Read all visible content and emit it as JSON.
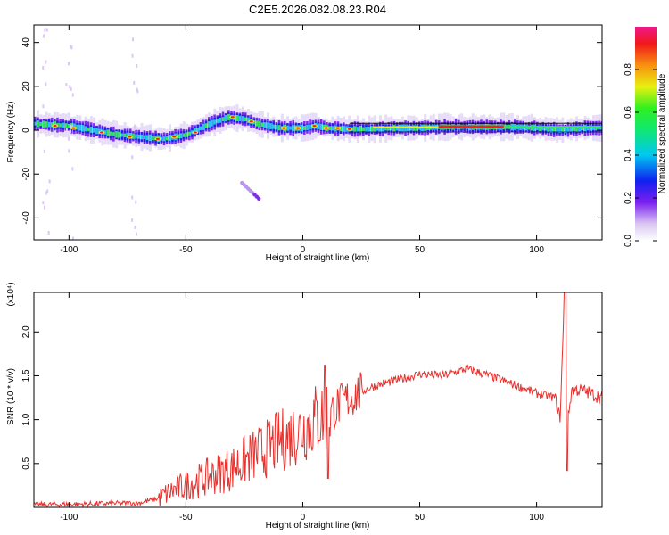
{
  "figure": {
    "title": "C2E5.2026.082.08.23.R04"
  },
  "colors": {
    "line": "#e8302d",
    "axis": "#000000",
    "background": "#ffffff"
  },
  "chart_data": [
    {
      "type": "heatmap",
      "xlabel": "Height of straight line (km)",
      "ylabel": "Frequency (Hz)",
      "xlim": [
        -115,
        128
      ],
      "ylim": [
        -50,
        48
      ],
      "xticks": [
        -100,
        -50,
        0,
        50,
        100
      ],
      "yticks": [
        -40,
        -20,
        0,
        20,
        40
      ],
      "xtick_labels": [
        "-100",
        "-50",
        "0",
        "50",
        "100"
      ],
      "ytick_labels": [
        "-40",
        "-20",
        "0",
        "20",
        "40"
      ],
      "ridge": {
        "x": [
          -115,
          -100,
          -90,
          -80,
          -70,
          -60,
          -50,
          -40,
          -32,
          -25,
          -20,
          -10,
          0,
          5,
          10,
          20,
          30,
          40,
          50,
          60,
          70,
          80,
          90,
          100,
          110,
          120,
          128
        ],
        "y": [
          3,
          2,
          0,
          -2,
          -3,
          -4,
          -2,
          3,
          6,
          5,
          3,
          1,
          1,
          2,
          1,
          0.5,
          0.5,
          1,
          1,
          1.5,
          1.5,
          1.5,
          1.5,
          1,
          0,
          1,
          1
        ]
      },
      "colorbar": {
        "label": "Normalized spectral amplitude",
        "ticks": [
          0.0,
          0.2,
          0.4,
          0.6,
          0.8
        ],
        "tick_labels": [
          "0.0",
          "0.2",
          "0.4",
          "0.6",
          "0.8"
        ],
        "range": [
          0,
          1
        ]
      }
    },
    {
      "type": "line",
      "xlabel": "Height of straight line (km)",
      "ylabel": "SNR (10 * v/v)",
      "scale_label": "(x10⁴)",
      "xlim": [
        -115,
        128
      ],
      "ylim": [
        0,
        2.45
      ],
      "xticks": [
        -100,
        -50,
        0,
        50,
        100
      ],
      "yticks": [
        0.5,
        1.0,
        1.5,
        2.0
      ],
      "xtick_labels": [
        "-100",
        "-50",
        "0",
        "50",
        "100"
      ],
      "ytick_labels": [
        "0.5",
        "1.0",
        "1.5",
        "2.0"
      ],
      "series": [
        {
          "trend": {
            "x": [
              -115,
              -90,
              -70,
              -62,
              -55,
              -50,
              -40,
              -30,
              -20,
              -10,
              0,
              5,
              10,
              15,
              20,
              30,
              40,
              50,
              60,
              70,
              80,
              90,
              100,
              108,
              110,
              112,
              113,
              115,
              120,
              128
            ],
            "y": [
              0.03,
              0.04,
              0.05,
              0.1,
              0.2,
              0.25,
              0.35,
              0.45,
              0.6,
              0.75,
              0.9,
              1.0,
              1.05,
              1.15,
              1.25,
              1.38,
              1.45,
              1.52,
              1.5,
              1.58,
              1.5,
              1.4,
              1.3,
              1.25,
              1.0,
              2.45,
              0.9,
              1.35,
              1.33,
              1.25
            ]
          }
        }
      ]
    }
  ]
}
